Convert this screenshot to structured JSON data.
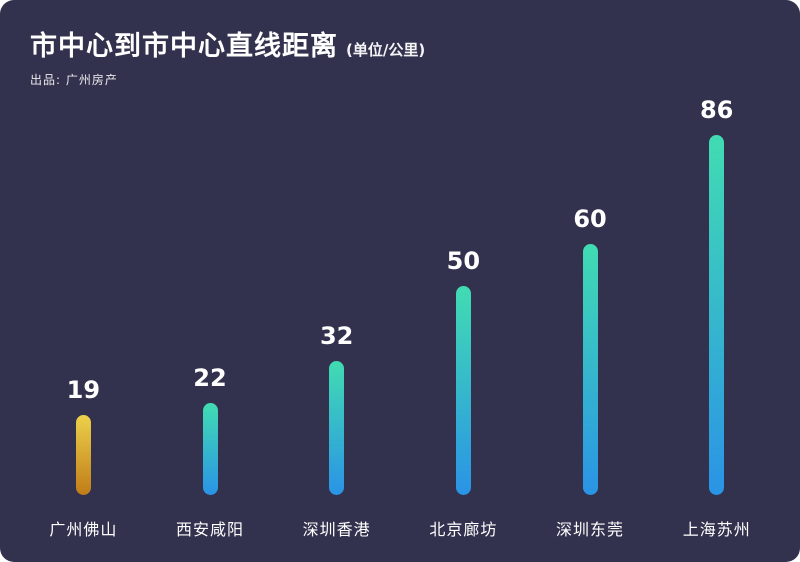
{
  "header": {
    "title": "市中心到市中心直线距离",
    "title_suffix": "(单位/公里)",
    "subtitle": "出品: 广州房产"
  },
  "chart_data": {
    "type": "bar",
    "title": "市中心到市中心直线距离",
    "unit_label": "(单位/公里)",
    "source": "出品: 广州房产",
    "categories": [
      "广州佛山",
      "西安咸阳",
      "深圳香港",
      "北京廊坊",
      "深圳东莞",
      "上海苏州"
    ],
    "values": [
      19,
      22,
      32,
      50,
      60,
      86
    ],
    "ylim": [
      0,
      90
    ],
    "grid": false,
    "legend": "none",
    "highlight_index": 0,
    "colors": {
      "background": "#32314e",
      "text": "#ffffff",
      "bar_gradient": [
        "#41dcb2",
        "#2a93e6"
      ],
      "highlight_gradient": [
        "#ecd14b",
        "#c07c18"
      ]
    }
  }
}
